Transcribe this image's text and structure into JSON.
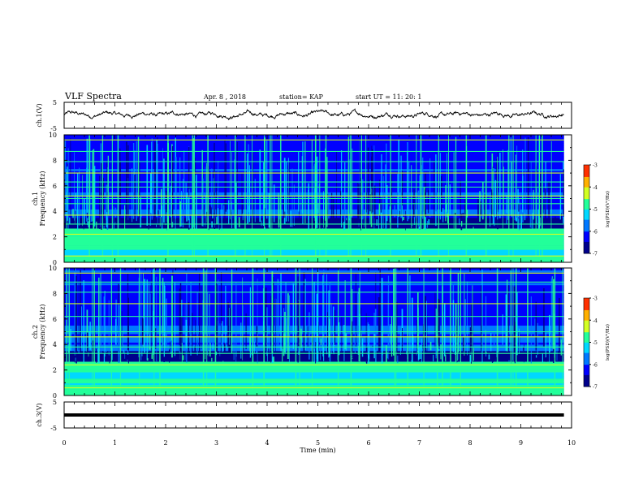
{
  "header": {
    "title": "VLF Spectra",
    "date": "Apr. 8 , 2018",
    "station": "station= KAP",
    "start": "start UT = 11: 20: 1"
  },
  "colorbar_label": "log(PSD)(V²/Hz)",
  "colorbar_ticks": [
    "-3",
    "-4",
    "-5",
    "-6",
    "-7"
  ],
  "colormap": [
    "#00008c",
    "#0000ff",
    "#0078ff",
    "#00d8ff",
    "#22ff9a",
    "#d2ff22",
    "#ffb000",
    "#ff3000",
    "#ffffff"
  ],
  "chart_data": [
    {
      "type": "line",
      "name": "ch1-waveform",
      "ylabel": "ch.1(V)",
      "ylim": [
        -5,
        5
      ],
      "yticks": [
        "5",
        "-5"
      ],
      "xlim": [
        0,
        10
      ],
      "description_values": {
        "baseline_v": 0.3,
        "amplitude_v": 1.5
      }
    },
    {
      "type": "heatmap",
      "name": "ch1-spectrogram",
      "ylabel": "ch.1 Frequency (kHz)",
      "ylim": [
        0,
        10
      ],
      "yticks": [
        "0",
        "2",
        "4",
        "6",
        "8",
        "10"
      ],
      "xlim": [
        0,
        9.85
      ],
      "clim": [
        -7,
        -3
      ],
      "band_lines_khz": [
        0.5,
        1.1,
        1.8,
        2.2,
        2.4,
        3.0,
        3.7,
        4.6,
        5.0,
        5.2,
        5.9,
        6.3,
        7.0,
        7.9,
        8.7,
        9.6
      ]
    },
    {
      "type": "heatmap",
      "name": "ch2-spectrogram",
      "ylabel": "ch.2 Frequency (kHz)",
      "ylim": [
        0,
        10
      ],
      "yticks": [
        "0",
        "2",
        "4",
        "6",
        "8",
        "10"
      ],
      "xlim": [
        0,
        9.85
      ],
      "clim": [
        -7,
        -3
      ],
      "band_lines_khz": [
        0.6,
        1.0,
        1.9,
        2.4,
        3.3,
        3.8,
        4.6,
        5.0,
        6.2,
        7.2,
        8.1,
        8.9,
        9.6
      ]
    },
    {
      "type": "line",
      "name": "ch3-waveform",
      "ylabel": "ch.3(V)",
      "ylim": [
        -5,
        5
      ],
      "yticks": [
        "5",
        "-5"
      ],
      "xlim": [
        0,
        10
      ],
      "constant_value_v": 0
    }
  ],
  "xaxis": {
    "label": "Time (min)",
    "ticks": [
      "0",
      "1",
      "2",
      "3",
      "4",
      "5",
      "6",
      "7",
      "8",
      "9",
      "10"
    ]
  }
}
